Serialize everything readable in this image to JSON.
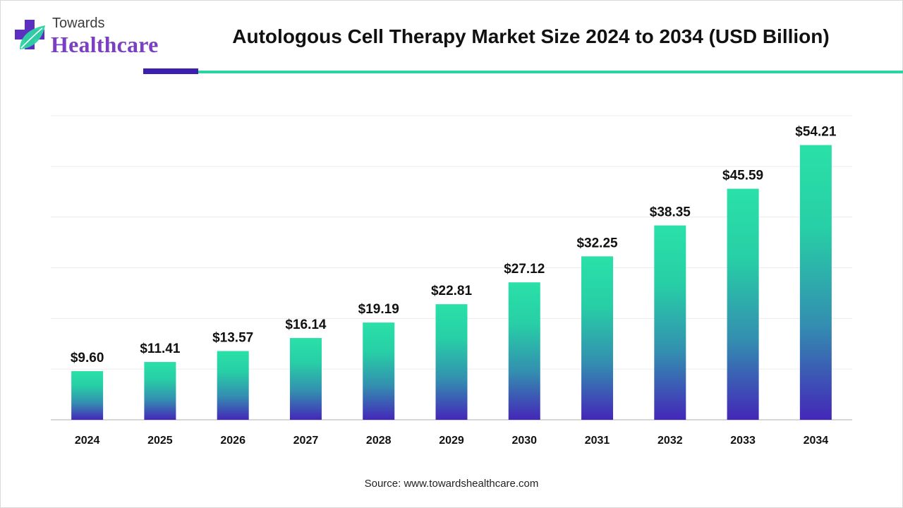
{
  "brand": {
    "top": "Towards",
    "main": "Healthcare",
    "colors": {
      "purple": "#7a3fc2",
      "teal": "#2ed3a3",
      "indigo": "#3d1fb0"
    }
  },
  "title": "Autologous Cell Therapy Market Size 2024 to 2034 (USD Billion)",
  "source": "Source: www.towardshealthcare.com",
  "chart_data": {
    "type": "bar",
    "categories": [
      "2024",
      "2025",
      "2026",
      "2027",
      "2028",
      "2029",
      "2030",
      "2031",
      "2032",
      "2033",
      "2034"
    ],
    "values": [
      9.6,
      11.41,
      13.57,
      16.14,
      19.19,
      22.81,
      27.12,
      32.25,
      38.35,
      45.59,
      54.21
    ],
    "labels": [
      "$9.60",
      "$11.41",
      "$13.57",
      "$16.14",
      "$19.19",
      "$22.81",
      "$27.12",
      "$32.25",
      "$38.35",
      "$45.59",
      "$54.21"
    ],
    "title": "Autologous Cell Therapy Market Size 2024 to 2034 (USD Billion)",
    "xlabel": "",
    "ylabel": "",
    "ylim": [
      0,
      60
    ],
    "grid": true,
    "legend": "none",
    "colors": {
      "bar_top": "#2ae0a8",
      "bar_bottom": "#4427b8"
    }
  }
}
